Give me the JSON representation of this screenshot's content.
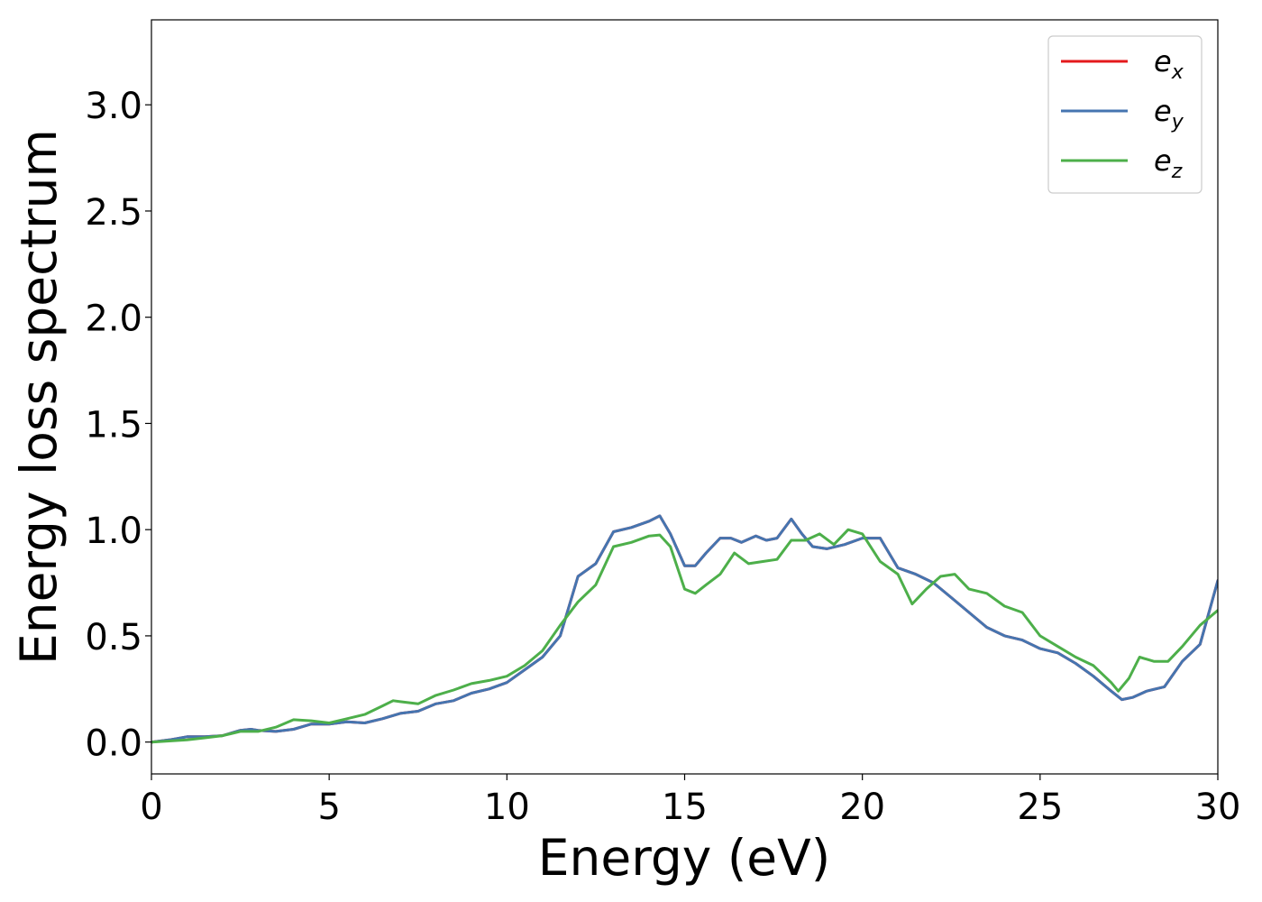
{
  "chart_data": {
    "type": "line",
    "xlabel": "Energy (eV)",
    "ylabel": "Energy loss spectrum",
    "xlim": [
      0,
      30
    ],
    "ylim": [
      -0.15,
      3.4
    ],
    "xticks": [
      0,
      5,
      10,
      15,
      20,
      25,
      30
    ],
    "xtick_labels": [
      "0",
      "5",
      "10",
      "15",
      "20",
      "25",
      "30"
    ],
    "yticks": [
      0.0,
      0.5,
      1.0,
      1.5,
      2.0,
      2.5,
      3.0
    ],
    "ytick_labels": [
      "0.0",
      "0.5",
      "1.0",
      "1.5",
      "2.0",
      "2.5",
      "3.0"
    ],
    "grid": false,
    "legend_position": "top-right",
    "series": [
      {
        "name": "e_x",
        "label_base": "e",
        "label_sub": "x",
        "color": "#e41a1c",
        "x": [
          0,
          0.5,
          1,
          1.5,
          2,
          2.5,
          2.8,
          3,
          3.5,
          4,
          4.5,
          5,
          5.5,
          6,
          6.5,
          7,
          7.5,
          8,
          8.5,
          9,
          9.5,
          10,
          10.5,
          11,
          11.5,
          12,
          12.5,
          13,
          13.5,
          14,
          14.3,
          14.6,
          15,
          15.3,
          15.6,
          16,
          16.3,
          16.6,
          17,
          17.3,
          17.6,
          18,
          18.3,
          18.6,
          19,
          19.5,
          20,
          20.5,
          21,
          21.5,
          22,
          22.5,
          23,
          23.5,
          24,
          24.5,
          25,
          25.5,
          26,
          26.5,
          27,
          27.3,
          27.6,
          28,
          28.5,
          29,
          29.5,
          30
        ],
        "y": [
          0.0,
          0.01,
          0.025,
          0.025,
          0.03,
          0.055,
          0.06,
          0.055,
          0.05,
          0.06,
          0.085,
          0.085,
          0.095,
          0.09,
          0.11,
          0.135,
          0.145,
          0.18,
          0.195,
          0.23,
          0.25,
          0.28,
          0.34,
          0.4,
          0.5,
          0.78,
          0.84,
          0.99,
          1.01,
          1.04,
          1.065,
          0.98,
          0.83,
          0.83,
          0.89,
          0.96,
          0.96,
          0.94,
          0.97,
          0.95,
          0.96,
          1.05,
          0.98,
          0.92,
          0.91,
          0.93,
          0.96,
          0.96,
          0.82,
          0.79,
          0.75,
          0.68,
          0.61,
          0.54,
          0.5,
          0.48,
          0.44,
          0.42,
          0.37,
          0.31,
          0.24,
          0.2,
          0.21,
          0.24,
          0.26,
          0.38,
          0.46,
          0.76
        ]
      },
      {
        "name": "e_y",
        "label_base": "e",
        "label_sub": "y",
        "color": "#4575b0",
        "x": [
          0,
          0.5,
          1,
          1.5,
          2,
          2.5,
          2.8,
          3,
          3.5,
          4,
          4.5,
          5,
          5.5,
          6,
          6.5,
          7,
          7.5,
          8,
          8.5,
          9,
          9.5,
          10,
          10.5,
          11,
          11.5,
          12,
          12.5,
          13,
          13.5,
          14,
          14.3,
          14.6,
          15,
          15.3,
          15.6,
          16,
          16.3,
          16.6,
          17,
          17.3,
          17.6,
          18,
          18.3,
          18.6,
          19,
          19.5,
          20,
          20.5,
          21,
          21.5,
          22,
          22.5,
          23,
          23.5,
          24,
          24.5,
          25,
          25.5,
          26,
          26.5,
          27,
          27.3,
          27.6,
          28,
          28.5,
          29,
          29.5,
          30
        ],
        "y": [
          0.0,
          0.01,
          0.025,
          0.025,
          0.03,
          0.055,
          0.06,
          0.055,
          0.05,
          0.06,
          0.085,
          0.085,
          0.095,
          0.09,
          0.11,
          0.135,
          0.145,
          0.18,
          0.195,
          0.23,
          0.25,
          0.28,
          0.34,
          0.4,
          0.5,
          0.78,
          0.84,
          0.99,
          1.01,
          1.04,
          1.065,
          0.98,
          0.83,
          0.83,
          0.89,
          0.96,
          0.96,
          0.94,
          0.97,
          0.95,
          0.96,
          1.05,
          0.98,
          0.92,
          0.91,
          0.93,
          0.96,
          0.96,
          0.82,
          0.79,
          0.75,
          0.68,
          0.61,
          0.54,
          0.5,
          0.48,
          0.44,
          0.42,
          0.37,
          0.31,
          0.24,
          0.2,
          0.21,
          0.24,
          0.26,
          0.38,
          0.46,
          0.76
        ]
      },
      {
        "name": "e_z",
        "label_base": "e",
        "label_sub": "z",
        "color": "#4daf4a",
        "x": [
          0,
          0.5,
          1,
          1.5,
          2,
          2.5,
          3,
          3.5,
          4,
          4.5,
          5,
          5.5,
          6,
          6.5,
          6.8,
          7,
          7.5,
          8,
          8.5,
          9,
          9.5,
          10,
          10.5,
          11,
          11.5,
          12,
          12.5,
          13,
          13.5,
          14,
          14.3,
          14.6,
          15,
          15.3,
          15.6,
          16,
          16.4,
          16.8,
          17.2,
          17.6,
          18,
          18.4,
          18.8,
          19.2,
          19.6,
          20,
          20.5,
          21,
          21.4,
          21.8,
          22.2,
          22.6,
          23,
          23.5,
          24,
          24.5,
          25,
          25.5,
          26,
          26.5,
          27,
          27.2,
          27.5,
          27.8,
          28.2,
          28.6,
          29,
          29.5,
          30
        ],
        "y": [
          0.0,
          0.005,
          0.01,
          0.02,
          0.03,
          0.05,
          0.05,
          0.07,
          0.105,
          0.1,
          0.09,
          0.11,
          0.13,
          0.17,
          0.195,
          0.19,
          0.18,
          0.22,
          0.245,
          0.275,
          0.29,
          0.31,
          0.36,
          0.43,
          0.55,
          0.66,
          0.74,
          0.92,
          0.94,
          0.97,
          0.975,
          0.92,
          0.72,
          0.7,
          0.74,
          0.79,
          0.89,
          0.84,
          0.85,
          0.86,
          0.95,
          0.95,
          0.98,
          0.93,
          1.0,
          0.98,
          0.85,
          0.79,
          0.65,
          0.72,
          0.78,
          0.79,
          0.72,
          0.7,
          0.64,
          0.61,
          0.5,
          0.45,
          0.4,
          0.36,
          0.28,
          0.24,
          0.3,
          0.4,
          0.38,
          0.38,
          0.45,
          0.55,
          0.62
        ]
      }
    ]
  }
}
